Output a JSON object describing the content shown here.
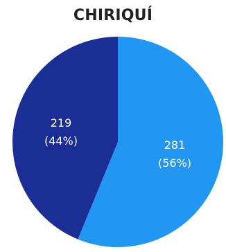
{
  "chart_data": {
    "type": "pie",
    "title": "CHIRIQUÍ",
    "slices": [
      {
        "value": 281,
        "label_value": "281",
        "label_pct": "(56%)",
        "color": "#2196f3"
      },
      {
        "value": 219,
        "label_value": "219",
        "label_pct": "(44%)",
        "color": "#1a2e96"
      }
    ],
    "start": "12 o'clock",
    "direction": "clockwise"
  }
}
